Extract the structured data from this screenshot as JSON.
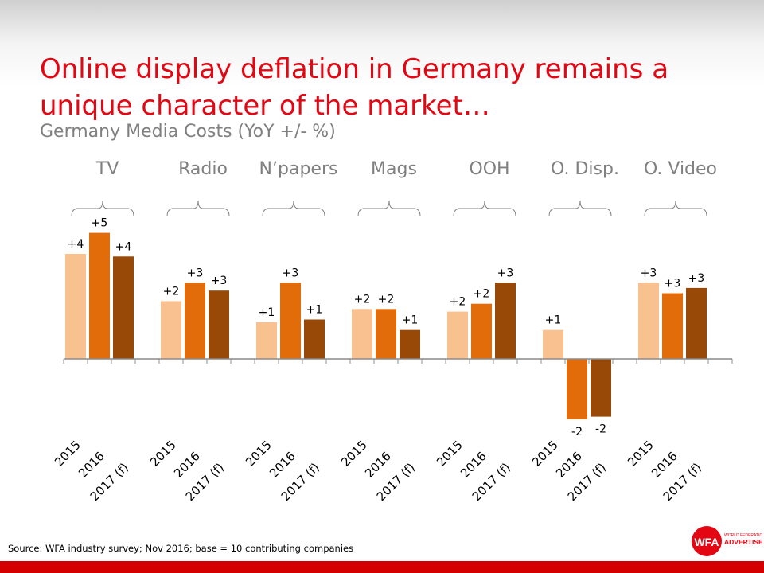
{
  "title": "Online display deflation in Germany remains a unique character of the market…",
  "subtitle": "Germany Media Costs (YoY +/- %)",
  "source": "Source: WFA industry survey; Nov 2016; base = 10 contributing  companies",
  "logo": {
    "mark": "WFA",
    "text_top": "WORLD FEDERATION OF",
    "text_bottom": "ADVERTISERS"
  },
  "colors": {
    "2015": "#F9C190",
    "2016": "#E36C0A",
    "2017 (f)": "#984807",
    "title": "#E30613",
    "footer": "#D40000"
  },
  "chart_data": {
    "type": "bar",
    "title": "Germany Media Costs (YoY +/- %)",
    "categories": [
      "TV",
      "Radio",
      "N’papers",
      "Mags",
      "OOH",
      "O. Disp.",
      "O. Video"
    ],
    "sub_categories": [
      "2015",
      "2016",
      "2017 (f)"
    ],
    "series": [
      {
        "name": "2015",
        "values": [
          4.0,
          2.2,
          1.4,
          1.9,
          1.8,
          1.1,
          2.9
        ],
        "labels": [
          "+4",
          "+2",
          "+1",
          "+2",
          "+2",
          "+1",
          "+3"
        ]
      },
      {
        "name": "2016",
        "values": [
          4.8,
          2.9,
          2.9,
          1.9,
          2.1,
          -2.3,
          2.5
        ],
        "labels": [
          "+5",
          "+3",
          "+3",
          "+2",
          "+2",
          "-2",
          "+3"
        ]
      },
      {
        "name": "2017 (f)",
        "values": [
          3.9,
          2.6,
          1.5,
          1.1,
          2.9,
          -2.2,
          2.7
        ],
        "labels": [
          "+4",
          "+3",
          "+1",
          "+1",
          "+3",
          "-2",
          "+3"
        ]
      }
    ],
    "ylim": [
      -3,
      5.5
    ],
    "grid": false,
    "legend": "none"
  }
}
